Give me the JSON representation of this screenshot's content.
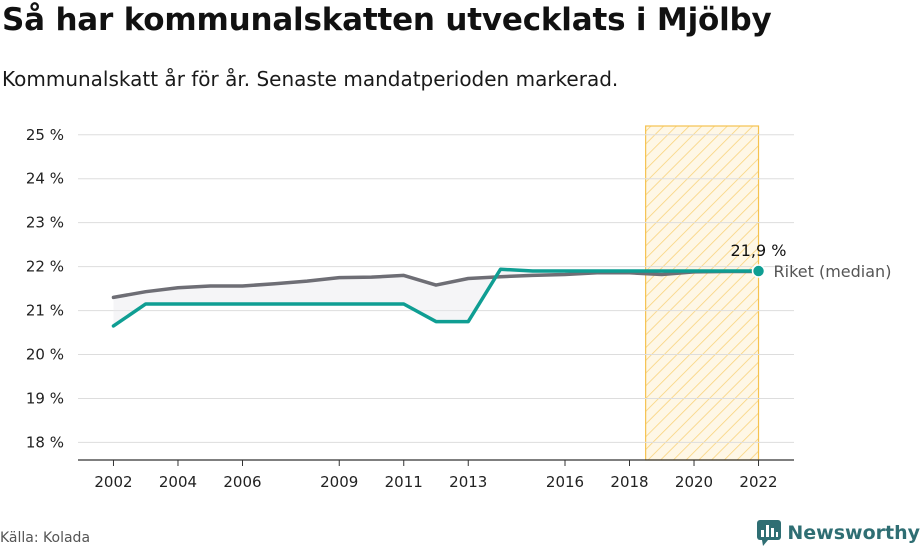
{
  "header": {
    "title": "Så har kommunalskatten utvecklats i Mjölby",
    "subtitle": "Kommunalskatt år för år. Senaste mandatperioden markerad."
  },
  "footer": {
    "source": "Källa: Kolada",
    "brand": "Newsworthy"
  },
  "colors": {
    "municipality": "#0f9e93",
    "national": "#6e6e75",
    "highlight_fill": "#fde8b6",
    "highlight_stroke": "#f5c24f",
    "grid": "#dddddd",
    "brand": "#2f6e73"
  },
  "chart_data": {
    "type": "line",
    "x": [
      2002,
      2003,
      2004,
      2005,
      2006,
      2007,
      2008,
      2009,
      2010,
      2011,
      2012,
      2013,
      2014,
      2015,
      2016,
      2017,
      2018,
      2019,
      2020,
      2021,
      2022
    ],
    "x_ticks": [
      "2002",
      "2004",
      "2006",
      "2009",
      "2011",
      "2013",
      "2016",
      "2018",
      "2020",
      "2022"
    ],
    "y_ticks": [
      "18 %",
      "19 %",
      "20 %",
      "21 %",
      "22 %",
      "23 %",
      "24 %",
      "25 %"
    ],
    "ylim": [
      17.6,
      25.2
    ],
    "highlight_period": [
      2018.5,
      2022
    ],
    "grid": true,
    "series": [
      {
        "key": "municipality",
        "values": [
          20.65,
          21.15,
          21.15,
          21.15,
          21.15,
          21.15,
          21.15,
          21.15,
          21.15,
          21.15,
          20.75,
          20.75,
          21.94,
          21.9,
          21.9,
          21.9,
          21.9,
          21.9,
          21.9,
          21.9,
          21.9
        ]
      },
      {
        "name": "Riket (median)",
        "key": "national",
        "values": [
          21.3,
          21.43,
          21.52,
          21.56,
          21.56,
          21.61,
          21.67,
          21.75,
          21.76,
          21.8,
          21.58,
          21.73,
          21.77,
          21.8,
          21.82,
          21.86,
          21.86,
          21.82,
          21.88,
          21.89,
          21.89
        ]
      }
    ],
    "end_label": "21,9 %",
    "series_label": "Riket (median)"
  }
}
